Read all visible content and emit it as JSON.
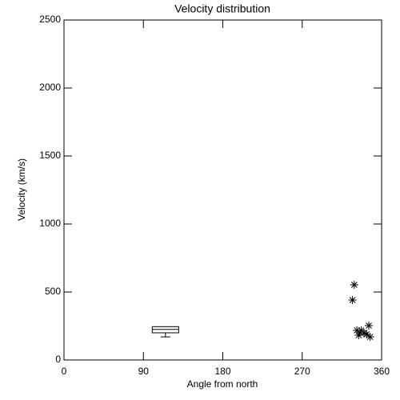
{
  "chart_data": {
    "type": "scatter",
    "title": "Velocity distribution",
    "x_label": "Angle from north",
    "y_label": "Velocity (km/s)",
    "x": [
      329,
      327,
      332,
      334,
      337,
      340,
      343,
      345.5,
      347,
      335.5
    ],
    "values": [
      553,
      441,
      218,
      182,
      218,
      200,
      188,
      253,
      170,
      200
    ],
    "color": "#000000",
    "box": {
      "x": [
        100,
        130
      ],
      "low": 170,
      "q1": 200,
      "median": 225,
      "q3": 245,
      "high": 245
    },
    "xlim": [
      0,
      360
    ],
    "xticks": [
      0,
      90,
      180,
      270,
      360
    ],
    "ylim": [
      0,
      2500
    ],
    "yticks": [
      0,
      500,
      1000,
      1500,
      2000,
      2500
    ]
  }
}
